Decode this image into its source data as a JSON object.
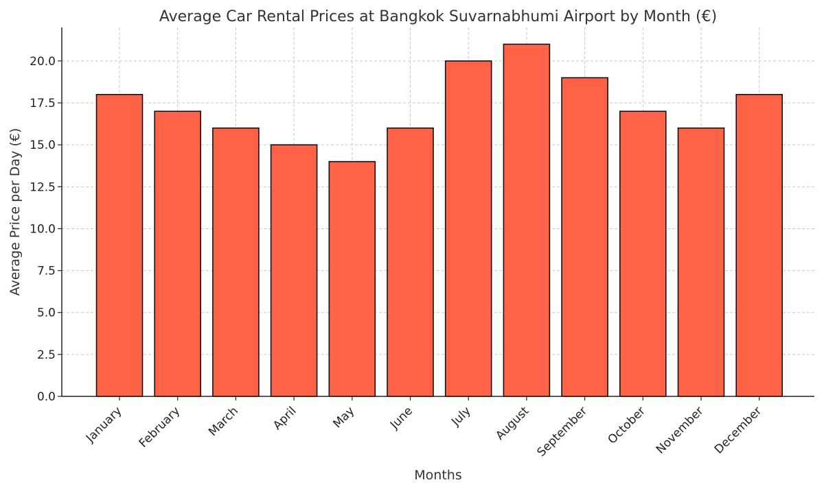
{
  "chart_data": {
    "type": "bar",
    "title": "Average Car Rental Prices at Bangkok Suvarnabhumi Airport by Month (€)",
    "xlabel": "Months",
    "ylabel": "Average Price per Day (€)",
    "categories": [
      "January",
      "February",
      "March",
      "April",
      "May",
      "June",
      "July",
      "August",
      "September",
      "October",
      "November",
      "December"
    ],
    "values": [
      18,
      17,
      16,
      15,
      14,
      16,
      20,
      21,
      19,
      17,
      16,
      18
    ],
    "ylim": [
      0,
      22
    ],
    "yticks": [
      "0.0",
      "2.5",
      "5.0",
      "7.5",
      "10.0",
      "12.5",
      "15.0",
      "17.5",
      "20.0"
    ],
    "grid": true,
    "bar_color": "#FF6347",
    "edge_color": "#111111"
  }
}
